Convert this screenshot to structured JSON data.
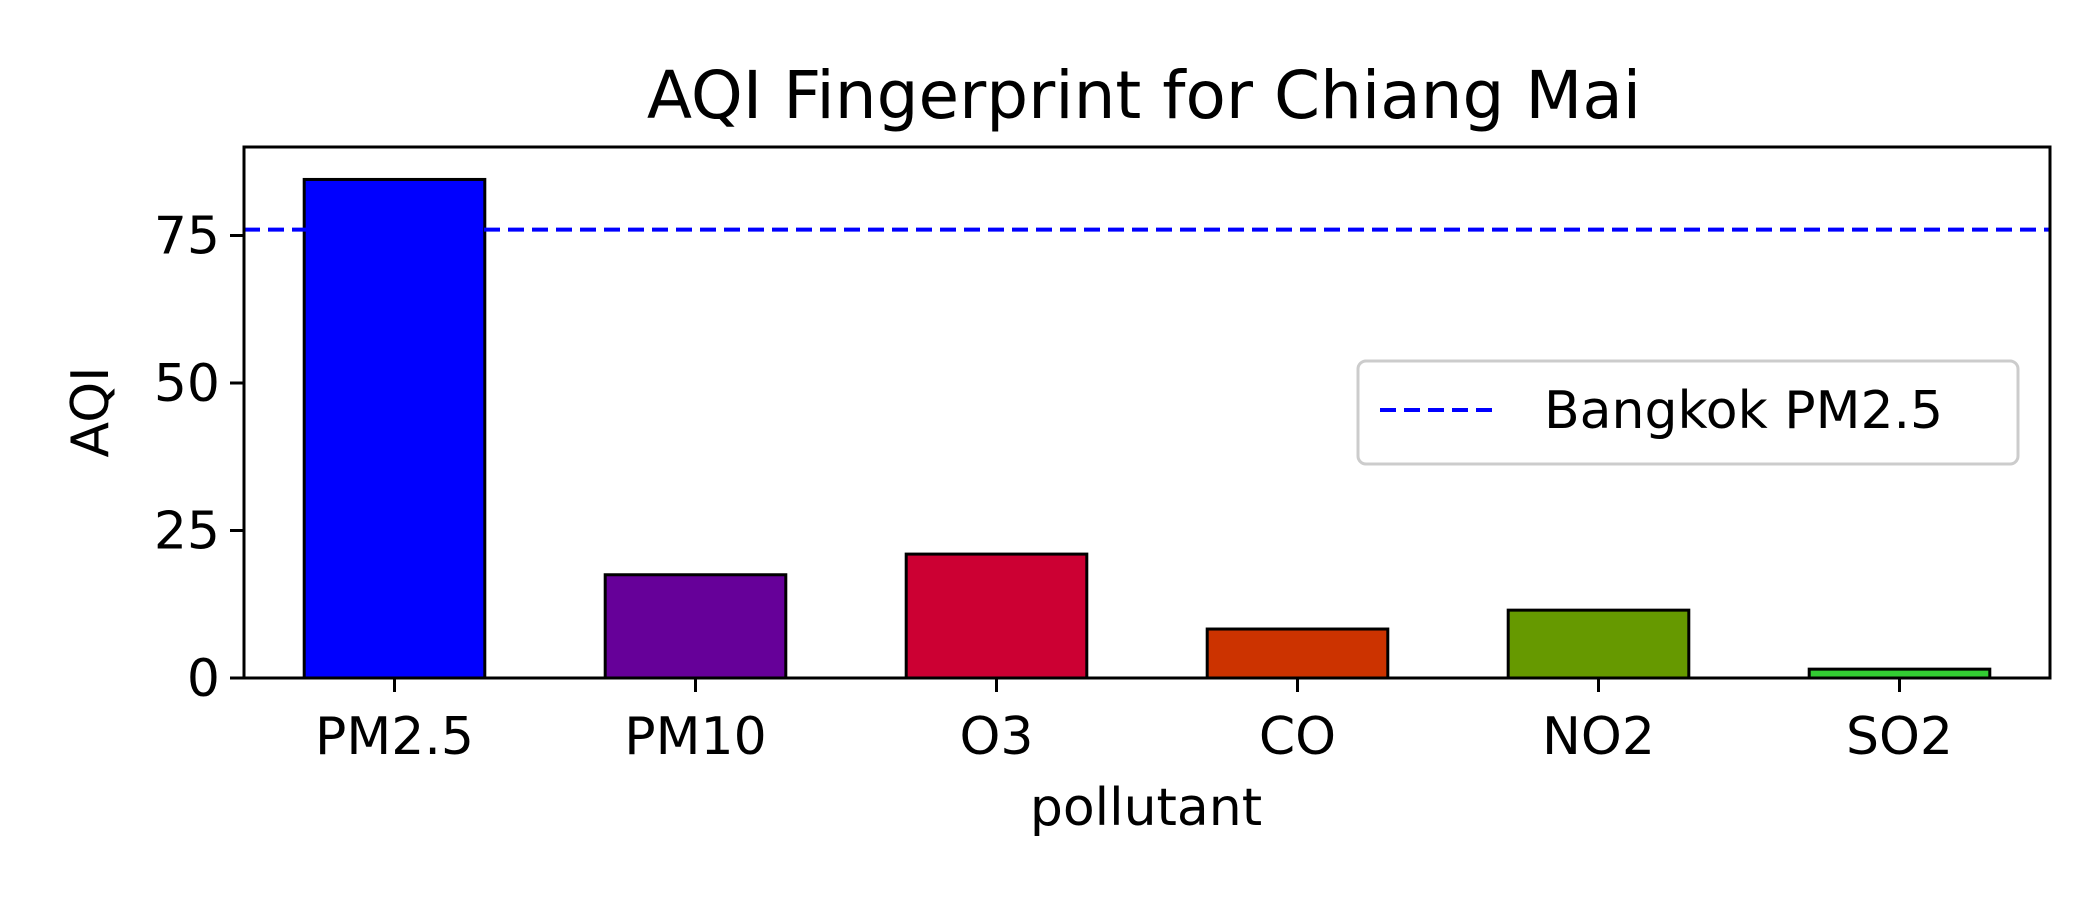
{
  "chart_data": {
    "type": "bar",
    "title": "AQI Fingerprint for Chiang Mai",
    "xlabel": "pollutant",
    "ylabel": "AQI",
    "categories": [
      "PM2.5",
      "PM10",
      "O3",
      "CO",
      "NO2",
      "SO2"
    ],
    "values": [
      84.5,
      17.5,
      21,
      8.3,
      11.5,
      1.5
    ],
    "bar_colors": [
      "#0000ff",
      "#660099",
      "#cc0033",
      "#cc3300",
      "#669900",
      "#33cc33"
    ],
    "ylim": [
      0,
      90
    ],
    "yticks": [
      0,
      25,
      50,
      75
    ],
    "reference_line": {
      "label": "Bangkok PM2.5",
      "value": 76,
      "color": "#0000ff",
      "style": "dashed"
    },
    "legend_position": "center-right",
    "grid": false
  }
}
